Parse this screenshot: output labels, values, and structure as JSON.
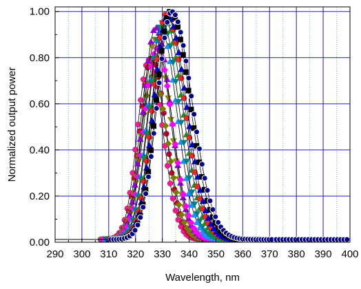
{
  "chart_data": {
    "type": "scatter",
    "title": "",
    "xlabel": "Wavelength, nm",
    "ylabel": "Normalized output power",
    "xlim": [
      290,
      400
    ],
    "ylim": [
      0,
      1.02
    ],
    "x_ticks": [
      "290",
      "300",
      "310",
      "320",
      "330",
      "340",
      "350",
      "360",
      "370",
      "380",
      "390",
      "400"
    ],
    "y_ticks": [
      "0.00",
      "0.20",
      "0.40",
      "0.60",
      "0.80",
      "1.00"
    ],
    "y_tick_values": [
      0,
      0.2,
      0.4,
      0.6,
      0.8,
      1.0
    ],
    "grid": true,
    "colors": {
      "major_grid": "#1a1acc",
      "minor_grid": "#66dd66"
    },
    "legend": "none",
    "series_note": "peak wavelength (nm), peak normalized power, left/right gaussian sigma (nm), color, marker",
    "series": [
      {
        "peak_x": 325.0,
        "peak_y": 0.79,
        "sigma_left": 4.3,
        "sigma_right": 5.2,
        "color": "#ff1493",
        "marker": "circle"
      },
      {
        "peak_x": 326.0,
        "peak_y": 0.8,
        "sigma_left": 4.4,
        "sigma_right": 5.3,
        "color": "#cc0033",
        "marker": "circle"
      },
      {
        "peak_x": 326.5,
        "peak_y": 0.72,
        "sigma_left": 4.6,
        "sigma_right": 5.5,
        "color": "#7a7a00",
        "marker": "diamond"
      },
      {
        "peak_x": 327.5,
        "peak_y": 0.88,
        "sigma_left": 4.6,
        "sigma_right": 5.6,
        "color": "#8b8b00",
        "marker": "triangle-down"
      },
      {
        "peak_x": 327.5,
        "peak_y": 0.93,
        "sigma_left": 4.7,
        "sigma_right": 5.7,
        "color": "#9400d3",
        "marker": "triangle"
      },
      {
        "peak_x": 328.0,
        "peak_y": 0.84,
        "sigma_left": 4.8,
        "sigma_right": 5.8,
        "color": "#ff00ff",
        "marker": "diamond"
      },
      {
        "peak_x": 329.5,
        "peak_y": 0.92,
        "sigma_left": 4.9,
        "sigma_right": 6.0,
        "color": "#1e90ff",
        "marker": "triangle"
      },
      {
        "peak_x": 330.0,
        "peak_y": 0.95,
        "sigma_left": 5.0,
        "sigma_right": 6.3,
        "color": "#008080",
        "marker": "triangle-down"
      },
      {
        "peak_x": 331.0,
        "peak_y": 0.96,
        "sigma_left": 5.0,
        "sigma_right": 6.6,
        "color": "#228b22",
        "marker": "triangle"
      },
      {
        "peak_x": 331.5,
        "peak_y": 0.99,
        "sigma_left": 5.1,
        "sigma_right": 6.8,
        "color": "#ff2020",
        "marker": "circle"
      },
      {
        "peak_x": 332.0,
        "peak_y": 0.98,
        "sigma_left": 5.2,
        "sigma_right": 7.0,
        "color": "#0000cd",
        "marker": "triangle"
      },
      {
        "peak_x": 333.0,
        "peak_y": 1.0,
        "sigma_left": 5.3,
        "sigma_right": 7.3,
        "color": "#000000",
        "marker": "square"
      },
      {
        "peak_x": 333.5,
        "peak_y": 1.0,
        "sigma_left": 5.4,
        "sigma_right": 7.6,
        "color": "#000080",
        "marker": "ring"
      }
    ]
  }
}
